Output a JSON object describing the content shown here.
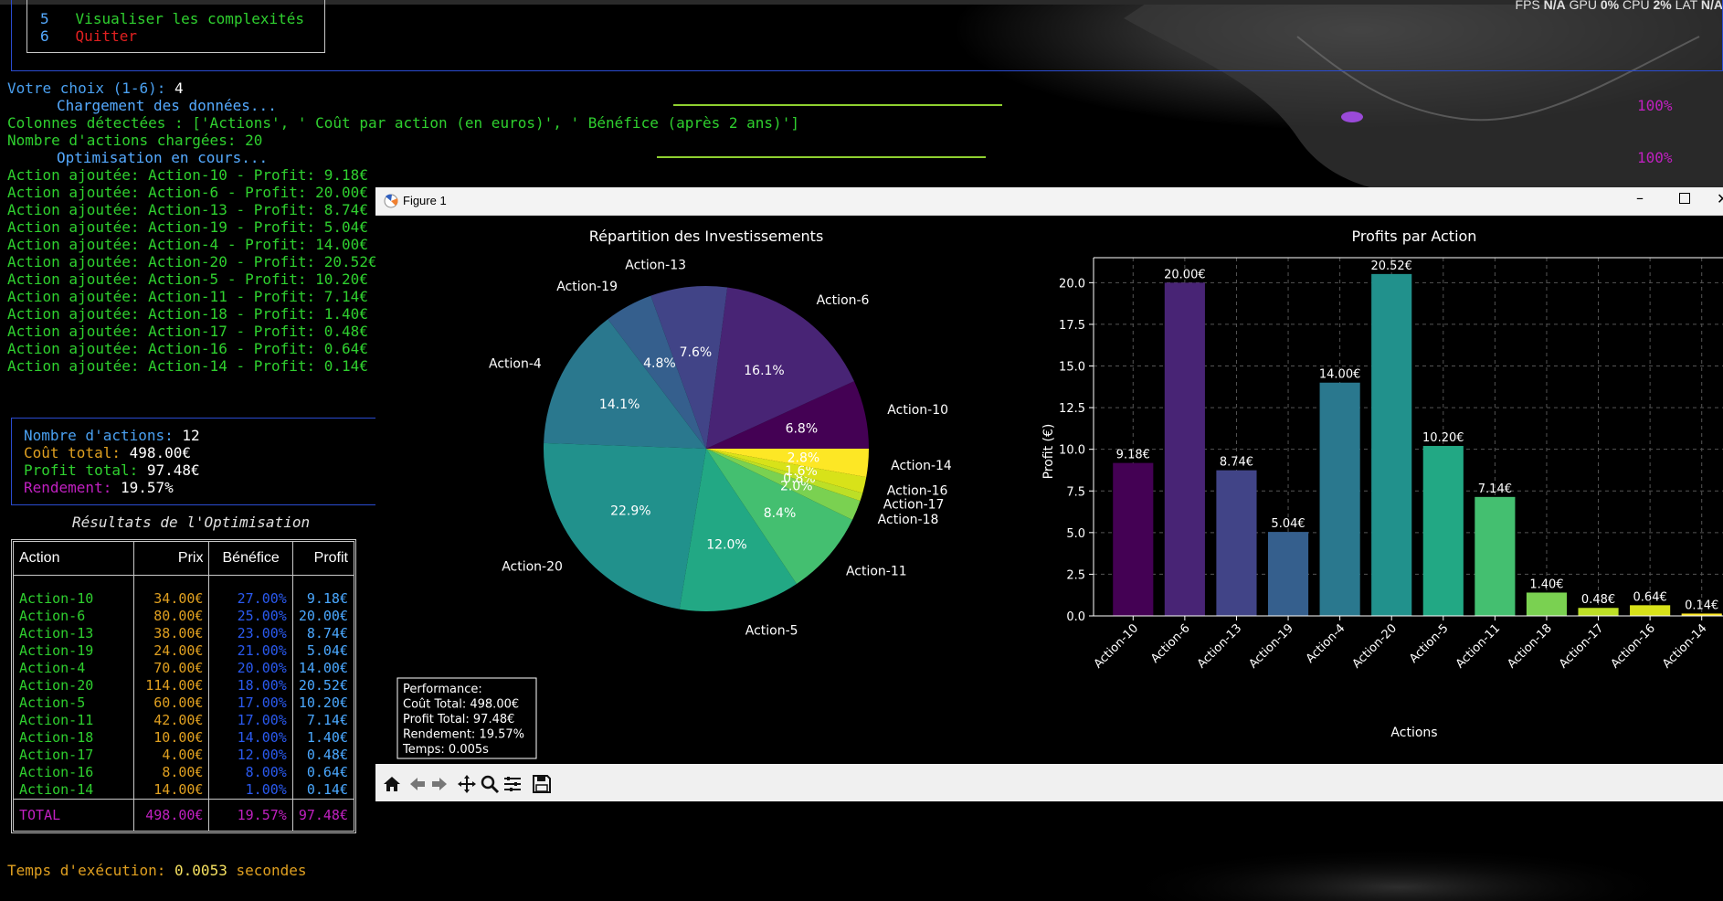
{
  "fps_bar": {
    "fps_label": "FPS",
    "fps_val": "N/A",
    "gpu_label": "GPU",
    "gpu_val": "0%",
    "cpu_label": "CPU",
    "cpu_val": "2%",
    "lat_label": "LAT",
    "lat_val": "N/A"
  },
  "menu": {
    "items": [
      {
        "num": "5",
        "label": "Visualiser les complexités"
      },
      {
        "num": "6",
        "label": "Quitter"
      }
    ]
  },
  "terminal": {
    "prompt": "Votre choix (1-6): ",
    "choice": "4",
    "loading": "Chargement des données...",
    "columns_line": "Colonnes détectées : ['Actions', ' Coût par action (en euros)', ' Bénéfice (après 2 ans)']",
    "count_line": "Nombre d'actions chargées: 20",
    "optim": "Optimisation en cours...",
    "progress_pct_1": "100%",
    "progress_pct_2": "100%",
    "added": [
      "Action ajoutée: Action-10 - Profit: 9.18€",
      "Action ajoutée: Action-6 - Profit: 20.00€",
      "Action ajoutée: Action-13 - Profit: 8.74€",
      "Action ajoutée: Action-19 - Profit: 5.04€",
      "Action ajoutée: Action-4 - Profit: 14.00€",
      "Action ajoutée: Action-20 - Profit: 20.52€",
      "Action ajoutée: Action-5 - Profit: 10.20€",
      "Action ajoutée: Action-11 - Profit: 7.14€",
      "Action ajoutée: Action-18 - Profit: 1.40€",
      "Action ajoutée: Action-17 - Profit: 0.48€",
      "Action ajoutée: Action-16 - Profit: 0.64€",
      "Action ajoutée: Action-14 - Profit: 0.14€"
    ],
    "summary": {
      "n_label": "Nombre d'actions:",
      "n_val": "12",
      "cost_label": "Coût total:",
      "cost_val": "498.00€",
      "profit_label": "Profit total:",
      "profit_val": "97.48€",
      "yield_label": "Rendement:",
      "yield_val": "19.57%"
    },
    "results_title": "Résultats de l'Optimisation",
    "results_headers": [
      "Action",
      "Prix",
      "Bénéfice",
      "Profit"
    ],
    "results_rows": [
      [
        "Action-10",
        "34.00€",
        "27.00%",
        "9.18€"
      ],
      [
        "Action-6",
        "80.00€",
        "25.00%",
        "20.00€"
      ],
      [
        "Action-13",
        "38.00€",
        "23.00%",
        "8.74€"
      ],
      [
        "Action-19",
        "24.00€",
        "21.00%",
        "5.04€"
      ],
      [
        "Action-4",
        "70.00€",
        "20.00%",
        "14.00€"
      ],
      [
        "Action-20",
        "114.00€",
        "18.00%",
        "20.52€"
      ],
      [
        "Action-5",
        "60.00€",
        "17.00%",
        "10.20€"
      ],
      [
        "Action-11",
        "42.00€",
        "17.00%",
        "7.14€"
      ],
      [
        "Action-18",
        "10.00€",
        "14.00%",
        "1.40€"
      ],
      [
        "Action-17",
        "4.00€",
        "12.00%",
        "0.48€"
      ],
      [
        "Action-16",
        "8.00€",
        "8.00%",
        "0.64€"
      ],
      [
        "Action-14",
        "14.00€",
        "1.00%",
        "0.14€"
      ]
    ],
    "results_total": [
      "TOTAL",
      "498.00€",
      "19.57%",
      "97.48€"
    ],
    "exec_label": "Temps d'exécution: ",
    "exec_val": "0.0053",
    "exec_unit": " secondes"
  },
  "figure": {
    "window_title": "Figure 1",
    "perf_box": [
      "Performance:",
      "Coût Total: 498.00€",
      "Profit Total: 97.48€",
      "Rendement: 19.57%",
      "Temps: 0.005s"
    ]
  },
  "colors": {
    "viridis": [
      "#440154",
      "#482475",
      "#414487",
      "#355f8d",
      "#2a788e",
      "#21918c",
      "#22a884",
      "#44bf70",
      "#7ad151",
      "#bddf26",
      "#d8e219",
      "#fde725"
    ]
  },
  "chart_data": [
    {
      "type": "pie",
      "title": "Répartition des Investissements",
      "labels": [
        "Action-10",
        "Action-6",
        "Action-13",
        "Action-19",
        "Action-4",
        "Action-20",
        "Action-5",
        "Action-11",
        "Action-18",
        "Action-17",
        "Action-16",
        "Action-14"
      ],
      "values": [
        6.8,
        16.1,
        7.6,
        4.8,
        14.1,
        22.9,
        12.0,
        8.4,
        2.0,
        0.8,
        1.6,
        2.8
      ],
      "pct_labels": [
        "6.8%",
        "16.1%",
        "7.6%",
        "4.8%",
        "14.1%",
        "22.9%",
        "12.0%",
        "8.4%",
        "2.0%",
        "0.8%",
        "1.6%",
        "2.8%"
      ]
    },
    {
      "type": "bar",
      "title": "Profits par Action",
      "xlabel": "Actions",
      "ylabel": "Profit (€)",
      "categories": [
        "Action-10",
        "Action-6",
        "Action-13",
        "Action-19",
        "Action-4",
        "Action-20",
        "Action-5",
        "Action-11",
        "Action-18",
        "Action-17",
        "Action-16",
        "Action-14"
      ],
      "values": [
        9.18,
        20.0,
        8.74,
        5.04,
        14.0,
        20.52,
        10.2,
        7.14,
        1.4,
        0.48,
        0.64,
        0.14
      ],
      "value_labels": [
        "9.18€",
        "20.00€",
        "8.74€",
        "5.04€",
        "14.00€",
        "20.52€",
        "10.20€",
        "7.14€",
        "1.40€",
        "0.48€",
        "0.64€",
        "0.14€"
      ],
      "yticks": [
        "0.0",
        "2.5",
        "5.0",
        "7.5",
        "10.0",
        "12.5",
        "15.0",
        "17.5",
        "20.0"
      ],
      "ylim": [
        0,
        21.5
      ],
      "grid": true
    }
  ]
}
